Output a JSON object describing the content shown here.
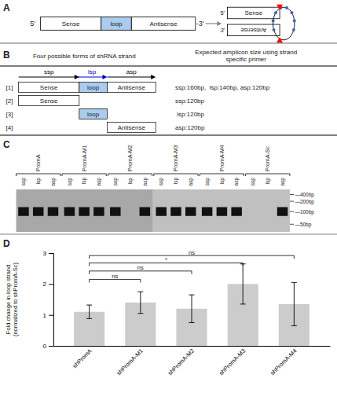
{
  "chart_data": [
    {
      "type": "diagram",
      "title": "A",
      "ends": [
        "5'",
        "-3'"
      ],
      "linear_elements": [
        "Sense",
        "loop",
        "Antisense"
      ],
      "hairpin": [
        "Sense",
        "Antisense"
      ],
      "hairpin_ends": [
        "5'",
        "3'"
      ],
      "loop_color": "#aaccee",
      "circle_color": "#4466aa",
      "triangle_color": "red",
      "arrow_color": "#888888"
    },
    {
      "type": "diagram",
      "title": "B",
      "annotations": [
        "Four possible forms of shRNA strand",
        "Expected amplicon size using strand\nspecific primer"
      ],
      "primers": [
        {
          "label": "ssp",
          "color": "black"
        },
        {
          "label": "lsp",
          "color": "#0000cc"
        },
        {
          "label": "asp",
          "color": "black"
        }
      ],
      "forms": [
        {
          "index": "[1]",
          "boxes": [
            "Sense",
            "loop",
            "Antisense"
          ],
          "amplicon": "ssp:160bp,  lsp:140bp, asp:120bp"
        },
        {
          "index": "[2]",
          "boxes": [
            "Sense"
          ],
          "amplicon": "ssp:120bp"
        },
        {
          "index": "[3]",
          "boxes": [
            "loop"
          ],
          "amplicon": " lsp:120bp"
        },
        {
          "index": "[4]",
          "boxes": [
            "Antisense"
          ],
          "amplicon": "asp:120bp"
        }
      ]
    },
    {
      "type": "diagram",
      "title": "C",
      "groups": [
        "PromA",
        "PromA-M1",
        "PromA-M2",
        "PromA-M3",
        "PromA-M4",
        "PromA-Sc"
      ],
      "lanes": [
        "ssp",
        "lsp",
        "asp"
      ],
      "marker_labels": [
        "—400bp",
        "—200bp",
        "—100bp",
        "—50bp"
      ],
      "band_presence": [
        [
          true,
          true,
          true
        ],
        [
          true,
          true,
          true
        ],
        [
          true,
          false,
          true
        ],
        [
          true,
          true,
          true
        ],
        [
          true,
          true,
          true
        ],
        [
          false,
          false,
          true
        ]
      ],
      "gel_colors": [
        "#a8a8a8",
        "#c0c0c0"
      ],
      "band_color": "#111111"
    },
    {
      "type": "bar",
      "title": "D",
      "categories": [
        "shPromA",
        "shPromA-M1",
        "shPromA-M2",
        "shPromA-M3",
        "shPromA-M4"
      ],
      "values": [
        1.1,
        1.4,
        1.2,
        2.0,
        1.35
      ],
      "errors": [
        0.22,
        0.35,
        0.45,
        0.65,
        0.7
      ],
      "color": "#cccccc",
      "ylabel": "Fold change in loop strand\n(normalized to shPromA-Sc)",
      "ylim": [
        0,
        3.0
      ],
      "yticks": [
        0,
        1,
        2,
        3
      ],
      "grid": false,
      "significance": [
        {
          "from": "shPromA",
          "to": "shPromA-M1",
          "label": "ns",
          "y": 2.15
        },
        {
          "from": "shPromA",
          "to": "shPromA-M2",
          "label": "ns",
          "y": 2.42
        },
        {
          "from": "shPromA",
          "to": "shPromA-M3",
          "label": "*",
          "y": 2.68
        },
        {
          "from": "shPromA",
          "to": "shPromA-M4",
          "label": "ns",
          "y": 2.92
        }
      ]
    }
  ]
}
